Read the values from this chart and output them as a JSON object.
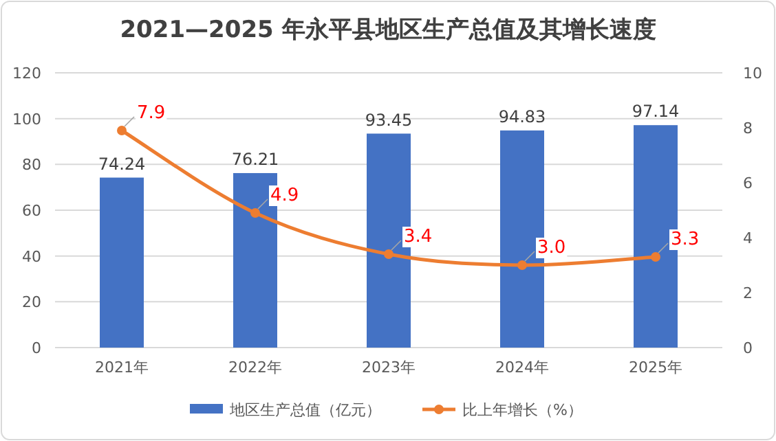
{
  "chart_data": {
    "type": "bar",
    "title": "2021—2025 年永平县地区生产总值及其增长速度",
    "categories": [
      "2021年",
      "2022年",
      "2023年",
      "2024年",
      "2025年"
    ],
    "series": [
      {
        "name": "地区生产总值（亿元）",
        "color": "#4472c4",
        "values": [
          74.24,
          76.21,
          93.45,
          94.83,
          97.14
        ],
        "value_labels": [
          "74.24",
          "76.21",
          "93.45",
          "94.83",
          "97.14"
        ]
      },
      {
        "name": "比上年增长（%）",
        "type": "line",
        "axis": "y2",
        "color": "#ed7d31",
        "marker": "circle",
        "values": [
          7.9,
          4.9,
          3.4,
          3.0,
          3.3
        ],
        "value_labels": [
          "7.9",
          "4.9",
          "3.4",
          "3.0",
          "3.3"
        ]
      }
    ],
    "ylim": [
      0,
      120
    ],
    "yticks": [
      0,
      20,
      40,
      60,
      80,
      100,
      120
    ],
    "y2lim": [
      0,
      10
    ],
    "y2ticks": [
      0,
      2,
      4,
      6,
      8,
      10
    ],
    "grid": "y",
    "legend": "bottom"
  }
}
